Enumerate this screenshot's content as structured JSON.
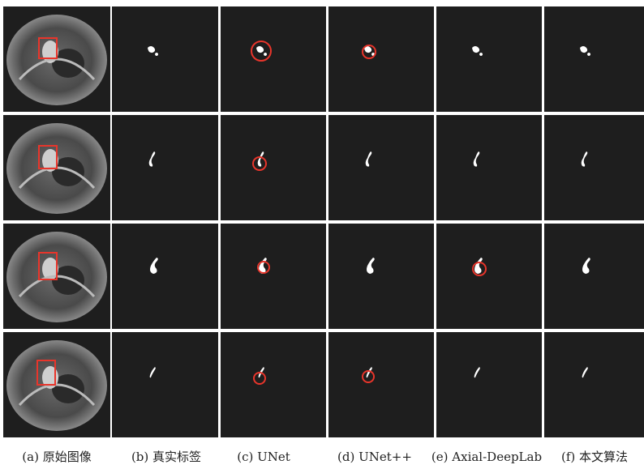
{
  "captions": [
    "(a) 原始图像",
    "(b) 真实标签",
    "(c) UNet",
    "(d) UNet++",
    "(e) Axial-DeepLab",
    "(f) 本文算法"
  ]
}
